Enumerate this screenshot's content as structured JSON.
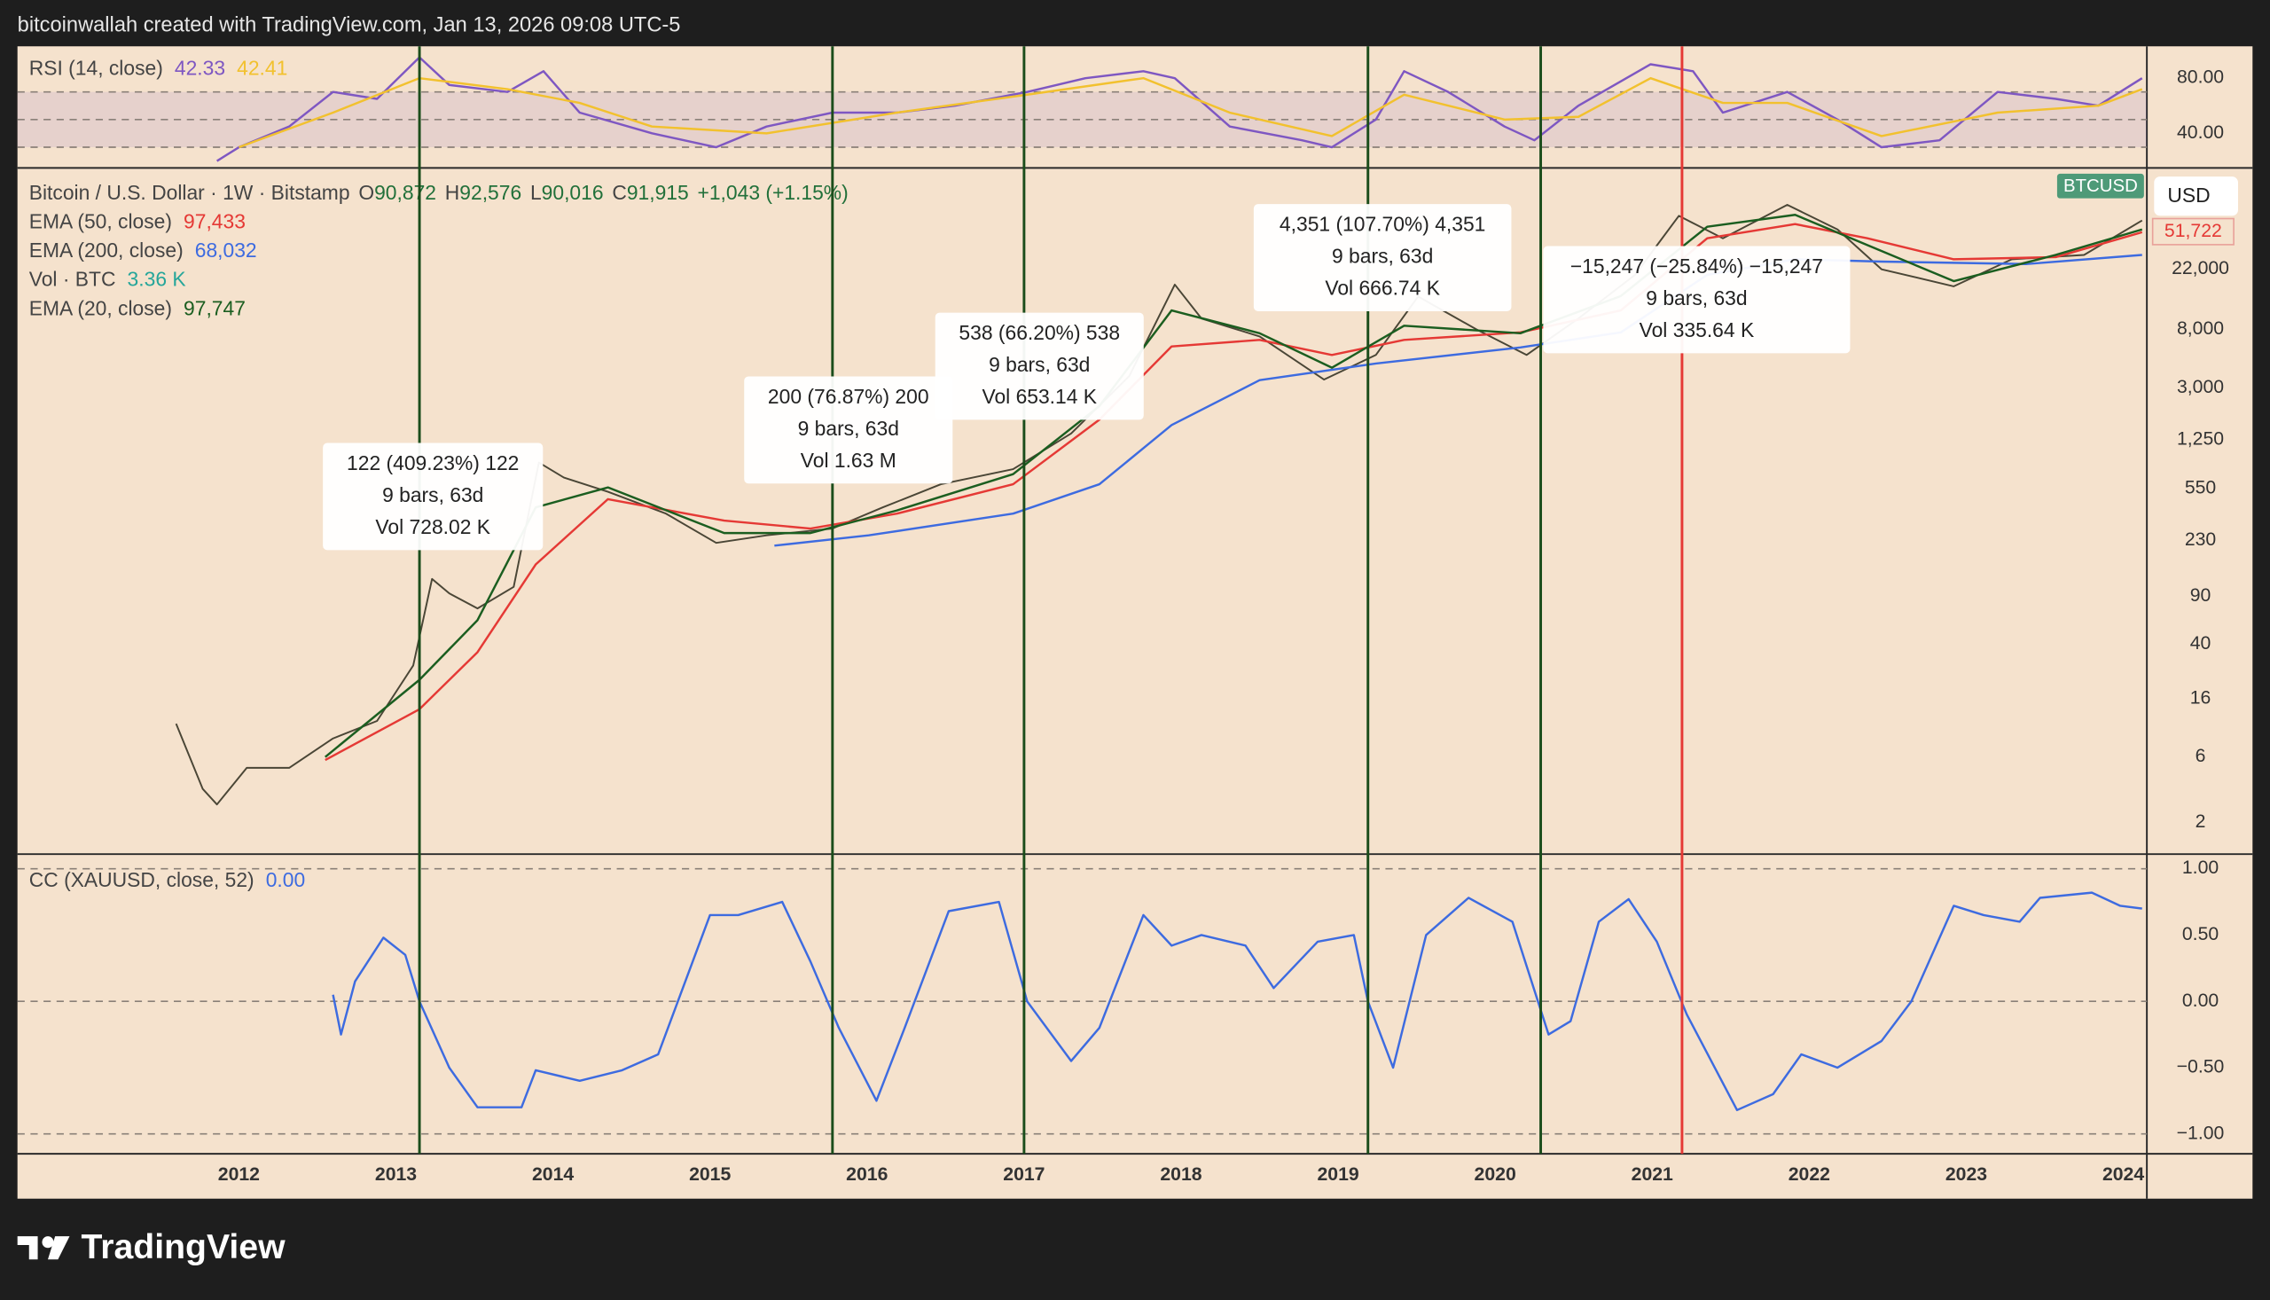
{
  "header": {
    "text": "bitcoinwallah created with TradingView.com, Jan 13, 2026 09:08 UTC-5"
  },
  "footer": {
    "brand": "TradingView"
  },
  "chart_data": [
    {
      "type": "line",
      "title": "RSI (14, close)",
      "xlim": [
        2010.59,
        2024.15
      ],
      "ylim": [
        15,
        103
      ],
      "yticks": [
        {
          "value": 80,
          "label": "80.00"
        },
        {
          "value": 40,
          "label": "40.00"
        }
      ],
      "band": [
        30,
        70
      ],
      "levels": [
        30,
        50,
        70
      ],
      "series": [
        {
          "color": "#7e57c2",
          "legend_value": "42.33",
          "x": [
            2011.86,
            2012.0,
            2012.32,
            2012.6,
            2012.88,
            2013.15,
            2013.34,
            2013.71,
            2013.94,
            2014.17,
            2014.63,
            2015.04,
            2015.36,
            2015.78,
            2016.19,
            2016.56,
            2017.02,
            2017.39,
            2017.76,
            2017.96,
            2018.31,
            2018.77,
            2018.96,
            2019.24,
            2019.42,
            2019.7,
            2020.06,
            2020.25,
            2020.53,
            2020.99,
            2021.26,
            2021.45,
            2021.86,
            2022.18,
            2022.46,
            2022.83,
            2023.2,
            2023.57,
            2023.84,
            2024.12
          ],
          "values": [
            20,
            30,
            45,
            70,
            65,
            95,
            75,
            70,
            85,
            55,
            40,
            30,
            45,
            55,
            55,
            60,
            70,
            80,
            85,
            80,
            45,
            35,
            30,
            50,
            85,
            70,
            45,
            35,
            60,
            90,
            85,
            55,
            70,
            50,
            30,
            35,
            70,
            65,
            60,
            80
          ]
        },
        {
          "color": "#f2c12e",
          "legend_value": "42.41",
          "x": [
            2012.0,
            2012.6,
            2013.15,
            2013.71,
            2014.17,
            2014.63,
            2015.36,
            2016.19,
            2017.02,
            2017.76,
            2018.31,
            2018.96,
            2019.42,
            2020.06,
            2020.53,
            2020.99,
            2021.45,
            2021.86,
            2022.46,
            2023.2,
            2023.84,
            2024.12
          ],
          "values": [
            30,
            55,
            80,
            72,
            62,
            45,
            40,
            55,
            68,
            80,
            55,
            38,
            68,
            50,
            52,
            80,
            62,
            62,
            38,
            55,
            60,
            72
          ]
        }
      ]
    },
    {
      "type": "line",
      "log": true,
      "symbol": "Bitcoin / U.S. Dollar · 1W · Bitstamp",
      "ohlc": [
        {
          "label": "O",
          "value": "90,872"
        },
        {
          "label": "H",
          "value": "92,576"
        },
        {
          "label": "L",
          "value": "90,016"
        },
        {
          "label": "C",
          "value": "91,915"
        }
      ],
      "change": "+1,043 (+1.15%)",
      "volume_legend": {
        "name": "Vol · BTC",
        "value": "3.36 K"
      },
      "symbol_tag": "BTCUSD",
      "currency": "USD",
      "price_tag": "51,722",
      "xlim": [
        2010.59,
        2024.15
      ],
      "ylim": [
        1.17,
        121000
      ],
      "yticks": [
        2,
        6,
        16,
        40,
        90,
        230,
        550,
        {
          "value": 1250,
          "label": "1,250"
        },
        {
          "value": 3000,
          "label": "3,000"
        },
        {
          "value": 8000,
          "label": "8,000"
        },
        {
          "value": 22000,
          "label": "22,000"
        }
      ],
      "vlines": [
        {
          "x": 2013.15,
          "color": "#1b4d1b"
        },
        {
          "x": 2015.78,
          "color": "#1b4d1b"
        },
        {
          "x": 2017.0,
          "color": "#1b4d1b"
        },
        {
          "x": 2019.19,
          "color": "#1b4d1b"
        },
        {
          "x": 2020.29,
          "color": "#1b4d1b"
        },
        {
          "x": 2021.19,
          "color": "#e53935"
        }
      ],
      "measurements": [
        {
          "lines": [
            "122 (409.23%) 122",
            "9 bars, 63d",
            "Vol 728.02 K"
          ]
        },
        {
          "lines": [
            "200 (76.87%) 200",
            "9 bars, 63d",
            "Vol 1.63 M"
          ]
        },
        {
          "lines": [
            "538 (66.20%) 538",
            "9 bars, 63d",
            "Vol 653.14 K"
          ]
        },
        {
          "lines": [
            "4,351 (107.70%) 4,351",
            "9 bars, 63d",
            "Vol 666.74 K"
          ]
        },
        {
          "lines": [
            "−15,247 (−25.84%) −15,247",
            "9 bars, 63d",
            "Vol 335.64 K"
          ]
        }
      ],
      "series": [
        {
          "color": "#4a4636",
          "x": [
            2011.6,
            2011.77,
            2011.86,
            2012.05,
            2012.32,
            2012.6,
            2012.88,
            2013.11,
            2013.23,
            2013.34,
            2013.52,
            2013.75,
            2013.91,
            2014.07,
            2014.35,
            2014.72,
            2015.04,
            2015.36,
            2015.78,
            2016.1,
            2016.47,
            2016.93,
            2017.3,
            2017.67,
            2017.96,
            2018.13,
            2018.5,
            2018.91,
            2019.24,
            2019.51,
            2019.88,
            2020.2,
            2020.53,
            2020.89,
            2021.17,
            2021.45,
            2021.86,
            2022.18,
            2022.46,
            2022.92,
            2023.29,
            2023.75,
            2024.12
          ],
          "values": [
            10.5,
            3.5,
            2.7,
            5,
            5,
            8.2,
            11,
            28,
            120,
            94,
            73,
            105,
            850,
            660,
            520,
            360,
            220,
            250,
            280,
            400,
            590,
            760,
            1390,
            3640,
            17000,
            9600,
            7100,
            3440,
            5200,
            13900,
            8000,
            5200,
            9600,
            20000,
            54000,
            37000,
            65000,
            43000,
            22000,
            16500,
            26000,
            28000,
            50000
          ]
        },
        {
          "name": "EMA (50, close)",
          "legend_value": "97,433",
          "color": "#e53935",
          "x": [
            2012.55,
            2013.15,
            2013.52,
            2013.89,
            2014.35,
            2015.09,
            2015.64,
            2016.19,
            2016.93,
            2017.48,
            2017.94,
            2018.5,
            2018.96,
            2019.42,
            2020.16,
            2020.8,
            2021.35,
            2021.91,
            2022.37,
            2022.92,
            2023.57,
            2024.12
          ],
          "values": [
            5.7,
            13.4,
            35,
            153,
            460,
            320,
            280,
            360,
            590,
            1750,
            6000,
            6700,
            5200,
            6700,
            7600,
            11000,
            37000,
            47000,
            37000,
            26000,
            27000,
            41000
          ]
        },
        {
          "name": "EMA (200, close)",
          "legend_value": "68,032",
          "color": "#3d6be0",
          "x": [
            2015.41,
            2016.01,
            2016.93,
            2017.48,
            2017.94,
            2018.5,
            2019.24,
            2020.16,
            2020.8,
            2021.35,
            2021.91,
            2022.46,
            2023.38,
            2024.12
          ],
          "values": [
            210,
            250,
            360,
            590,
            1600,
            3400,
            4500,
            5900,
            7600,
            20000,
            26000,
            25000,
            24000,
            28000
          ]
        },
        {
          "name": "EMA (20, close)",
          "legend_value": "97,747",
          "color": "#1b5e20",
          "x": [
            2012.55,
            2013.15,
            2013.52,
            2013.89,
            2014.35,
            2015.09,
            2015.64,
            2016.19,
            2016.93,
            2017.48,
            2017.94,
            2018.5,
            2018.96,
            2019.42,
            2020.16,
            2020.8,
            2021.35,
            2021.91,
            2022.37,
            2022.92,
            2023.57,
            2024.12
          ],
          "values": [
            6,
            22,
            60,
            400,
            560,
            260,
            260,
            380,
            700,
            2200,
            11000,
            7500,
            4200,
            8500,
            7500,
            14000,
            45000,
            55000,
            33000,
            18000,
            28000,
            43000
          ]
        }
      ]
    },
    {
      "type": "line",
      "title": "CC (XAUUSD, close, 52)",
      "xlim": [
        2010.59,
        2024.15
      ],
      "ylim": [
        -1.15,
        1.11
      ],
      "xticks": [
        2012,
        2013,
        2014,
        2015,
        2016,
        2017,
        2018,
        2019,
        2020,
        2021,
        2022,
        2023,
        2024
      ],
      "yticks": [
        {
          "value": 1,
          "label": "1.00"
        },
        {
          "value": 0.5,
          "label": "0.50"
        },
        {
          "value": 0,
          "label": "0.00"
        },
        {
          "value": -0.5,
          "label": "−0.50"
        },
        {
          "value": -1,
          "label": "−1.00"
        }
      ],
      "levels": [
        -1,
        0,
        1
      ],
      "series": [
        {
          "color": "#3d6be0",
          "legend_value": "0.00",
          "x": [
            2012.6,
            2012.65,
            2012.74,
            2012.92,
            2013.06,
            2013.15,
            2013.34,
            2013.52,
            2013.8,
            2013.89,
            2014.17,
            2014.44,
            2014.67,
            2015.0,
            2015.18,
            2015.46,
            2015.64,
            2015.82,
            2016.06,
            2016.24,
            2016.52,
            2016.84,
            2017.02,
            2017.3,
            2017.48,
            2017.76,
            2017.94,
            2018.13,
            2018.41,
            2018.59,
            2018.87,
            2019.1,
            2019.19,
            2019.35,
            2019.56,
            2019.83,
            2020.11,
            2020.34,
            2020.48,
            2020.66,
            2020.85,
            2021.03,
            2021.22,
            2021.54,
            2021.77,
            2021.95,
            2022.18,
            2022.46,
            2022.65,
            2022.92,
            2023.11,
            2023.34,
            2023.47,
            2023.8,
            2023.98,
            2024.12
          ],
          "values": [
            0.05,
            -0.25,
            0.15,
            0.48,
            0.35,
            0,
            -0.5,
            -0.8,
            -0.8,
            -0.52,
            -0.6,
            -0.52,
            -0.4,
            0.65,
            0.65,
            0.75,
            0.3,
            -0.2,
            -0.75,
            -0.2,
            0.68,
            0.75,
            0,
            -0.45,
            -0.2,
            0.65,
            0.42,
            0.5,
            0.42,
            0.1,
            0.45,
            0.5,
            0,
            -0.5,
            0.5,
            0.78,
            0.6,
            -0.25,
            -0.15,
            0.6,
            0.77,
            0.45,
            -0.1,
            -0.82,
            -0.7,
            -0.4,
            -0.5,
            -0.3,
            0,
            0.72,
            0.65,
            0.6,
            0.78,
            0.82,
            0.72,
            0.7
          ]
        }
      ]
    }
  ]
}
